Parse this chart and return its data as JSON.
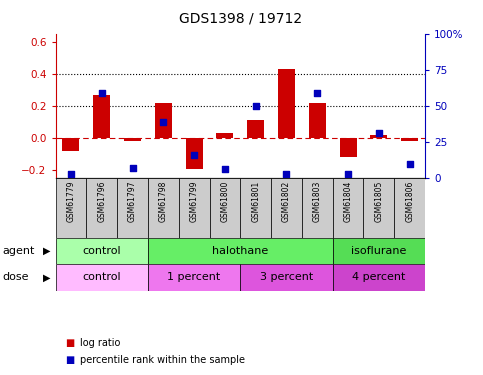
{
  "title": "GDS1398 / 19712",
  "samples": [
    "GSM61779",
    "GSM61796",
    "GSM61797",
    "GSM61798",
    "GSM61799",
    "GSM61800",
    "GSM61801",
    "GSM61802",
    "GSM61803",
    "GSM61804",
    "GSM61805",
    "GSM61806"
  ],
  "log_ratio": [
    -0.08,
    0.27,
    -0.02,
    0.22,
    -0.19,
    0.03,
    0.11,
    0.43,
    0.22,
    -0.12,
    0.02,
    -0.02
  ],
  "percentile_rank": [
    3,
    59,
    7,
    39,
    16,
    6,
    50,
    3,
    59,
    3,
    31,
    10
  ],
  "ylim_left": [
    -0.25,
    0.65
  ],
  "ylim_right": [
    0,
    100
  ],
  "yticks_left": [
    -0.2,
    0.0,
    0.2,
    0.4,
    0.6
  ],
  "yticks_right": [
    0,
    25,
    50,
    75,
    100
  ],
  "ytick_labels_right": [
    "0",
    "25",
    "50",
    "75",
    "100%"
  ],
  "dotted_lines": [
    0.4,
    0.2
  ],
  "agent_groups": [
    {
      "label": "control",
      "start": 0,
      "end": 3,
      "color": "#aaffaa"
    },
    {
      "label": "halothane",
      "start": 3,
      "end": 9,
      "color": "#66ee66"
    },
    {
      "label": "isoflurane",
      "start": 9,
      "end": 12,
      "color": "#55dd55"
    }
  ],
  "dose_groups": [
    {
      "label": "control",
      "start": 0,
      "end": 3,
      "color": "#ffbbff"
    },
    {
      "label": "1 percent",
      "start": 3,
      "end": 6,
      "color": "#ee77ee"
    },
    {
      "label": "3 percent",
      "start": 6,
      "end": 9,
      "color": "#dd55dd"
    },
    {
      "label": "4 percent",
      "start": 9,
      "end": 12,
      "color": "#cc44cc"
    }
  ],
  "bar_color": "#cc0000",
  "dot_color": "#0000bb",
  "zero_line_color": "#cc0000",
  "sample_box_color": "#cccccc",
  "bar_width": 0.55,
  "dot_size": 18,
  "agent_label": "agent",
  "dose_label": "dose",
  "legend_log_ratio": "log ratio",
  "legend_percentile": "percentile rank within the sample",
  "title_fontsize": 10,
  "tick_fontsize": 7.5,
  "label_fontsize": 7,
  "row_label_fontsize": 8,
  "sample_fontsize": 5.5
}
